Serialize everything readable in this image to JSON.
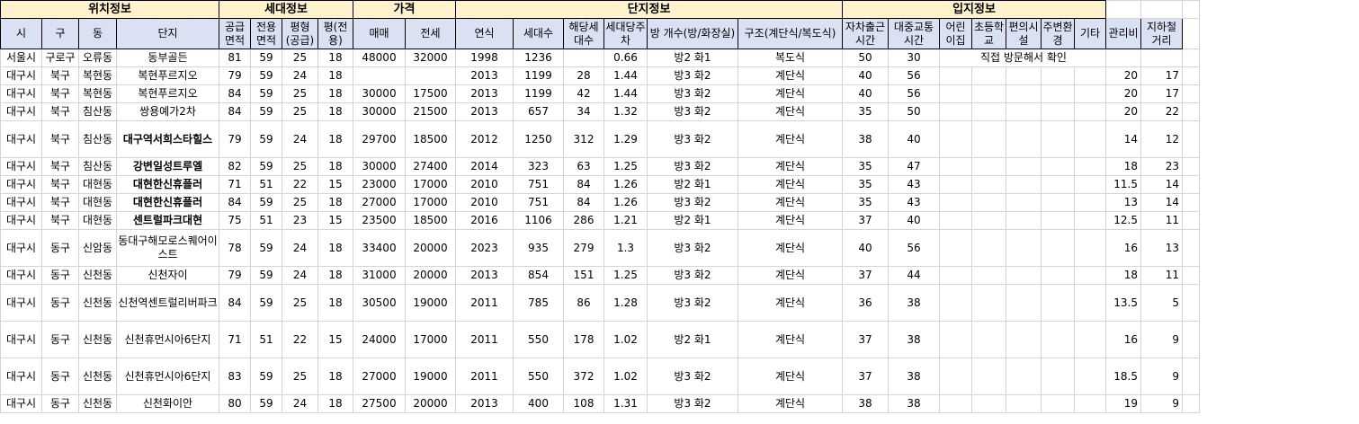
{
  "groups": {
    "location": "위치정보",
    "household": "세대정보",
    "price": "가격",
    "complex": "단지정보",
    "site": "입지정보"
  },
  "headers": {
    "si": "시",
    "gu": "구",
    "dong": "동",
    "danji": "단지",
    "supply_area": "공급면적",
    "excl_area": "전용면적",
    "pyeong_type": "평형(공급)",
    "pyeong_excl": "평(전용)",
    "sale": "매매",
    "jeonse": "전세",
    "year": "연식",
    "households": "세대수",
    "type_count": "해당세대수",
    "parking": "세대당주차",
    "rooms": "방 개수(방/화장실)",
    "structure": "구조(계단식/복도식)",
    "car_commute": "자차출근시간",
    "transit_commute": "대중교통시간",
    "daycare": "어린이집",
    "elementary": "초등학교",
    "convenience": "편의시설",
    "environment": "주변환경",
    "etc": "기타",
    "mgmt_fee": "관리비",
    "subway": "지하철거리"
  },
  "rows": [
    {
      "si": "서울시",
      "gu": "구로구",
      "dong": "오류동",
      "danji": "동부골든",
      "bold": false,
      "supply": "81",
      "excl": "59",
      "ptype": "25",
      "pexcl": "18",
      "sale": "48000",
      "jeonse": "32000",
      "year": "1998",
      "hh": "1236",
      "tc": "",
      "park": "0.66",
      "rooms": "방2 화1",
      "struct": "복도식",
      "car": "50",
      "transit": "30",
      "note": "직접 방문해서 확인",
      "fee": "",
      "subway": ""
    },
    {
      "si": "대구시",
      "gu": "북구",
      "dong": "복현동",
      "danji": "복현푸르지오",
      "bold": false,
      "supply": "79",
      "excl": "59",
      "ptype": "24",
      "pexcl": "18",
      "sale": "",
      "jeonse": "",
      "year": "2013",
      "hh": "1199",
      "tc": "28",
      "park": "1.44",
      "rooms": "방3 화2",
      "struct": "계단식",
      "car": "40",
      "transit": "56",
      "note": "",
      "fee": "20",
      "subway": "17"
    },
    {
      "si": "대구시",
      "gu": "북구",
      "dong": "복현동",
      "danji": "복현푸르지오",
      "bold": false,
      "supply": "84",
      "excl": "59",
      "ptype": "25",
      "pexcl": "18",
      "sale": "30000",
      "jeonse": "17500",
      "year": "2013",
      "hh": "1199",
      "tc": "42",
      "park": "1.44",
      "rooms": "방3 화2",
      "struct": "계단식",
      "car": "40",
      "transit": "56",
      "note": "",
      "fee": "20",
      "subway": "17"
    },
    {
      "si": "대구시",
      "gu": "북구",
      "dong": "침산동",
      "danji": "쌍용예가2차",
      "bold": false,
      "supply": "84",
      "excl": "59",
      "ptype": "25",
      "pexcl": "18",
      "sale": "30000",
      "jeonse": "21500",
      "year": "2013",
      "hh": "657",
      "tc": "34",
      "park": "1.32",
      "rooms": "방3 화2",
      "struct": "계단식",
      "car": "35",
      "transit": "50",
      "note": "",
      "fee": "20",
      "subway": "22"
    },
    {
      "si": "대구시",
      "gu": "북구",
      "dong": "침산동",
      "danji": "대구역서희스타힐스",
      "bold": true,
      "supply": "79",
      "excl": "59",
      "ptype": "24",
      "pexcl": "18",
      "sale": "29700",
      "jeonse": "18500",
      "year": "2012",
      "hh": "1250",
      "tc": "312",
      "park": "1.29",
      "rooms": "방3 화2",
      "struct": "계단식",
      "car": "38",
      "transit": "40",
      "note": "",
      "fee": "14",
      "subway": "12"
    },
    {
      "si": "대구시",
      "gu": "북구",
      "dong": "침산동",
      "danji": "강변일성트루엘",
      "bold": true,
      "supply": "82",
      "excl": "59",
      "ptype": "25",
      "pexcl": "18",
      "sale": "30000",
      "jeonse": "27400",
      "year": "2014",
      "hh": "323",
      "tc": "63",
      "park": "1.25",
      "rooms": "방3 화2",
      "struct": "계단식",
      "car": "35",
      "transit": "47",
      "note": "",
      "fee": "18",
      "subway": "23"
    },
    {
      "si": "대구시",
      "gu": "북구",
      "dong": "대현동",
      "danji": "대현한신휴플러",
      "bold": true,
      "supply": "71",
      "excl": "51",
      "ptype": "22",
      "pexcl": "15",
      "sale": "23000",
      "jeonse": "17000",
      "year": "2010",
      "hh": "751",
      "tc": "84",
      "park": "1.26",
      "rooms": "방2 화1",
      "struct": "계단식",
      "car": "35",
      "transit": "43",
      "note": "",
      "fee": "11.5",
      "subway": "14"
    },
    {
      "si": "대구시",
      "gu": "북구",
      "dong": "대현동",
      "danji": "대현한신휴플러",
      "bold": true,
      "supply": "84",
      "excl": "59",
      "ptype": "25",
      "pexcl": "18",
      "sale": "27000",
      "jeonse": "17000",
      "year": "2010",
      "hh": "751",
      "tc": "84",
      "park": "1.26",
      "rooms": "방3 화2",
      "struct": "계단식",
      "car": "35",
      "transit": "43",
      "note": "",
      "fee": "13",
      "subway": "14"
    },
    {
      "si": "대구시",
      "gu": "북구",
      "dong": "대현동",
      "danji": "센트럴파크대현",
      "bold": true,
      "supply": "75",
      "excl": "51",
      "ptype": "23",
      "pexcl": "15",
      "sale": "23500",
      "jeonse": "18500",
      "year": "2016",
      "hh": "1106",
      "tc": "286",
      "park": "1.21",
      "rooms": "방2 화1",
      "struct": "계단식",
      "car": "37",
      "transit": "40",
      "note": "",
      "fee": "12.5",
      "subway": "11"
    },
    {
      "si": "대구시",
      "gu": "동구",
      "dong": "신암동",
      "danji": "동대구해모로스퀘어이스트",
      "bold": false,
      "supply": "78",
      "excl": "59",
      "ptype": "24",
      "pexcl": "18",
      "sale": "33400",
      "jeonse": "20000",
      "year": "2023",
      "hh": "935",
      "tc": "279",
      "park": "1.3",
      "rooms": "방3 화2",
      "struct": "계단식",
      "car": "40",
      "transit": "56",
      "note": "",
      "fee": "16",
      "subway": "13"
    },
    {
      "si": "대구시",
      "gu": "동구",
      "dong": "신천동",
      "danji": "신천자이",
      "bold": false,
      "supply": "79",
      "excl": "59",
      "ptype": "24",
      "pexcl": "18",
      "sale": "31000",
      "jeonse": "20000",
      "year": "2013",
      "hh": "854",
      "tc": "151",
      "park": "1.25",
      "rooms": "방3 화2",
      "struct": "계단식",
      "car": "37",
      "transit": "44",
      "note": "",
      "fee": "18",
      "subway": "11"
    },
    {
      "si": "대구시",
      "gu": "동구",
      "dong": "신천동",
      "danji": "신천역센트럴리버파크",
      "bold": false,
      "supply": "84",
      "excl": "59",
      "ptype": "25",
      "pexcl": "18",
      "sale": "30500",
      "jeonse": "19000",
      "year": "2011",
      "hh": "785",
      "tc": "86",
      "park": "1.28",
      "rooms": "방3 화2",
      "struct": "계단식",
      "car": "36",
      "transit": "38",
      "note": "",
      "fee": "13.5",
      "subway": "5"
    },
    {
      "si": "대구시",
      "gu": "동구",
      "dong": "신천동",
      "danji": "신천휴먼시아6단지",
      "bold": false,
      "supply": "71",
      "excl": "51",
      "ptype": "22",
      "pexcl": "15",
      "sale": "24000",
      "jeonse": "17000",
      "year": "2011",
      "hh": "550",
      "tc": "178",
      "park": "1.02",
      "rooms": "방2 화1",
      "struct": "계단식",
      "car": "37",
      "transit": "38",
      "note": "",
      "fee": "16",
      "subway": "9"
    },
    {
      "si": "대구시",
      "gu": "동구",
      "dong": "신천동",
      "danji": "신천휴먼시아6단지",
      "bold": false,
      "supply": "83",
      "excl": "59",
      "ptype": "25",
      "pexcl": "18",
      "sale": "27000",
      "jeonse": "19000",
      "year": "2011",
      "hh": "550",
      "tc": "372",
      "park": "1.02",
      "rooms": "방3 화2",
      "struct": "계단식",
      "car": "37",
      "transit": "38",
      "note": "",
      "fee": "18.5",
      "subway": "9"
    },
    {
      "si": "대구시",
      "gu": "동구",
      "dong": "신천동",
      "danji": "신천화이안",
      "bold": false,
      "supply": "80",
      "excl": "59",
      "ptype": "24",
      "pexcl": "18",
      "sale": "27500",
      "jeonse": "20000",
      "year": "2013",
      "hh": "400",
      "tc": "108",
      "park": "1.31",
      "rooms": "방3 화2",
      "struct": "계단식",
      "car": "38",
      "transit": "38",
      "note": "",
      "fee": "19",
      "subway": "9"
    }
  ]
}
